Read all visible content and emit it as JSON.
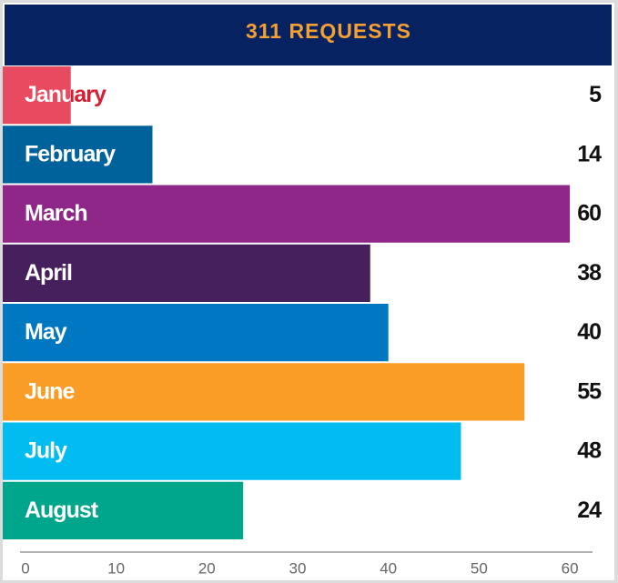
{
  "chart_data": {
    "type": "bar",
    "orientation": "horizontal",
    "title": "311 REQUESTS",
    "categories": [
      "January",
      "February",
      "March",
      "April",
      "May",
      "June",
      "July",
      "August"
    ],
    "values": [
      5,
      14,
      60,
      38,
      40,
      55,
      48,
      24
    ],
    "colors": [
      "#e84a5f",
      "#00629b",
      "#8e2787",
      "#45205d",
      "#0078c1",
      "#f99d27",
      "#00bcf0",
      "#00a68b"
    ],
    "title_color": "#f5a033",
    "title_background": "#062260",
    "xlim": [
      -2.5,
      62.5
    ],
    "xticks": [
      0,
      10,
      20,
      30,
      40,
      50,
      60
    ],
    "grid": false
  }
}
